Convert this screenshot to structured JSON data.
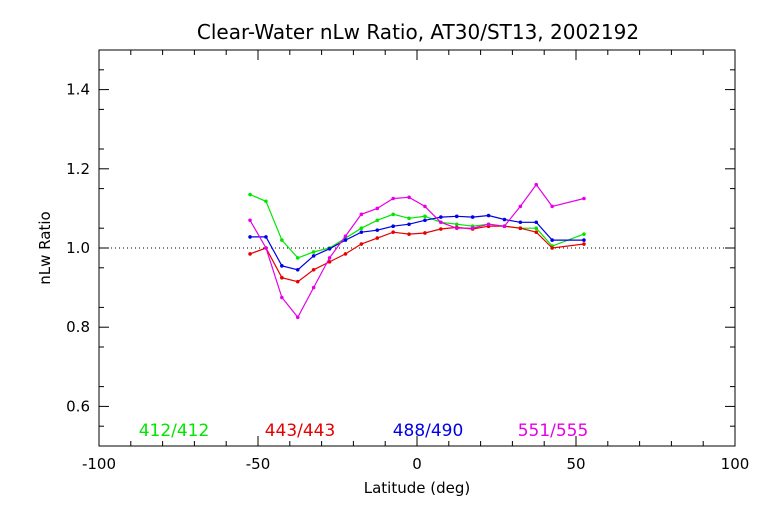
{
  "chart_data": {
    "type": "line",
    "title": "Clear-Water nLw Ratio, AT30/ST13, 2002192",
    "xlabel": "Latitude (deg)",
    "ylabel": "nLw Ratio",
    "xlim": [
      -100,
      100
    ],
    "ylim": [
      0.5,
      1.5
    ],
    "x_ticks": [
      "-100",
      "-50",
      "0",
      "50",
      "100"
    ],
    "y_ticks": [
      "0.6",
      "0.8",
      "1.0",
      "1.2",
      "1.4"
    ],
    "x_tick_values": [
      -100,
      -50,
      0,
      50,
      100
    ],
    "y_tick_values": [
      0.6,
      0.8,
      1.0,
      1.2,
      1.4
    ],
    "reference_line": {
      "y": 1.0,
      "style": "dotted"
    },
    "grid": false,
    "legend_position": "bottom, inside plot",
    "x": [
      -52.5,
      -47.5,
      -42.5,
      -37.5,
      -32.5,
      -27.5,
      -22.5,
      -17.5,
      -12.5,
      -7.5,
      -2.5,
      2.5,
      7.5,
      12.5,
      17.5,
      22.5,
      27.5,
      32.5,
      37.5,
      42.5,
      52.5
    ],
    "series": [
      {
        "name": "412/412",
        "color": "#00e600",
        "values": [
          1.135,
          1.118,
          1.02,
          0.975,
          0.99,
          1.0,
          1.025,
          1.05,
          1.07,
          1.085,
          1.075,
          1.08,
          1.065,
          1.06,
          1.055,
          1.06,
          1.055,
          1.05,
          1.05,
          1.005,
          1.035
        ]
      },
      {
        "name": "443/443",
        "color": "#e60000",
        "values": [
          0.985,
          1.0,
          0.925,
          0.915,
          0.945,
          0.965,
          0.985,
          1.01,
          1.025,
          1.04,
          1.035,
          1.038,
          1.048,
          1.052,
          1.048,
          1.055,
          1.055,
          1.05,
          1.04,
          1.0,
          1.01
        ]
      },
      {
        "name": "488/490",
        "color": "#0000e6",
        "values": [
          1.028,
          1.028,
          0.955,
          0.945,
          0.98,
          0.998,
          1.02,
          1.04,
          1.045,
          1.055,
          1.06,
          1.07,
          1.078,
          1.08,
          1.078,
          1.082,
          1.072,
          1.065,
          1.065,
          1.02,
          1.02
        ]
      },
      {
        "name": "551/555",
        "color": "#e600e6",
        "values": [
          1.07,
          1.0,
          0.875,
          0.825,
          0.9,
          0.975,
          1.03,
          1.085,
          1.1,
          1.125,
          1.128,
          1.105,
          1.065,
          1.05,
          1.05,
          1.06,
          1.055,
          1.105,
          1.16,
          1.105,
          1.125
        ]
      }
    ]
  }
}
